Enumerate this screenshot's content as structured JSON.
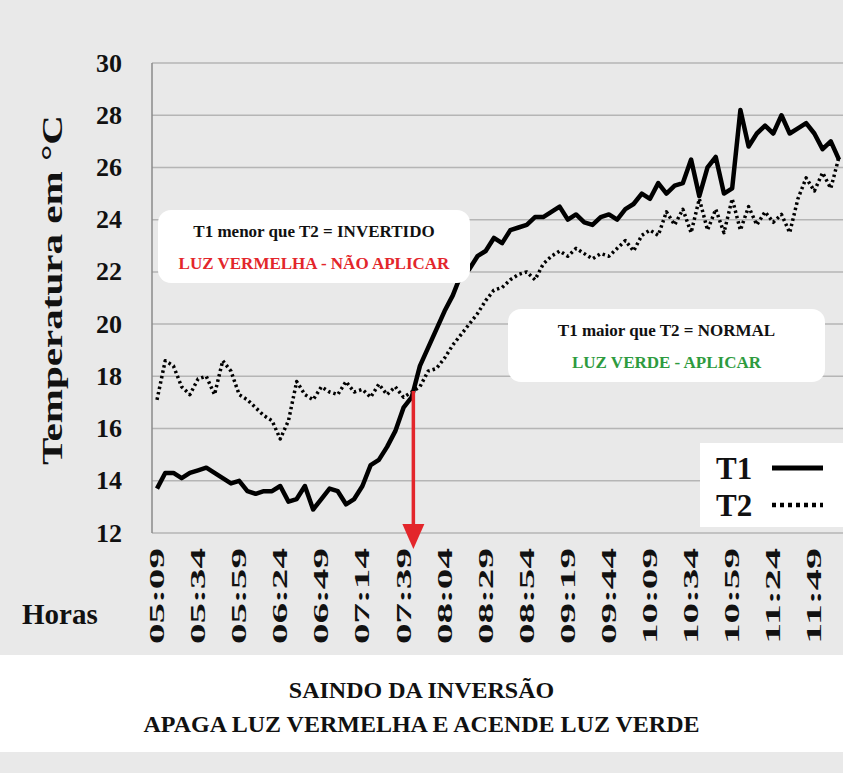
{
  "chart_data": {
    "type": "line",
    "x_label": "Horas",
    "y_label": "Temperatura em °C",
    "categories": [
      "05:09",
      null,
      null,
      null,
      null,
      "05:34",
      null,
      null,
      null,
      null,
      "05:59",
      null,
      null,
      null,
      null,
      "06:24",
      null,
      null,
      null,
      null,
      "06:49",
      null,
      null,
      null,
      null,
      "07:14",
      null,
      null,
      null,
      null,
      "07:39",
      null,
      null,
      null,
      null,
      "08:04",
      null,
      null,
      null,
      null,
      "08:29",
      null,
      null,
      null,
      null,
      "08:54",
      null,
      null,
      null,
      null,
      "09:19",
      null,
      null,
      null,
      null,
      "09:44",
      null,
      null,
      null,
      null,
      "10:09",
      null,
      null,
      null,
      null,
      "10:34",
      null,
      null,
      null,
      null,
      "10:59",
      null,
      null,
      null,
      null,
      "11:24",
      null,
      null,
      null,
      null,
      "11:49",
      null,
      null,
      null
    ],
    "series": [
      {
        "name": "T1",
        "color": "#000000",
        "line_style": "solid",
        "values": [
          13.7,
          14.3,
          14.3,
          14.1,
          14.3,
          14.4,
          14.5,
          14.3,
          14.1,
          13.9,
          14.0,
          13.6,
          13.5,
          13.6,
          13.6,
          13.8,
          13.2,
          13.3,
          13.8,
          12.9,
          13.3,
          13.7,
          13.6,
          13.1,
          13.3,
          13.8,
          14.6,
          14.8,
          15.3,
          15.9,
          16.8,
          17.2,
          18.4,
          19.1,
          19.8,
          20.5,
          21.1,
          21.9,
          22.1,
          22.6,
          22.8,
          23.3,
          23.1,
          23.6,
          23.7,
          23.8,
          24.1,
          24.1,
          24.3,
          24.5,
          24.0,
          24.2,
          23.9,
          23.8,
          24.1,
          24.2,
          24.0,
          24.4,
          24.6,
          25.0,
          24.8,
          25.4,
          25.0,
          25.3,
          25.4,
          26.3,
          24.9,
          26.0,
          26.4,
          25.0,
          25.2,
          28.2,
          26.8,
          27.3,
          27.6,
          27.3,
          28.0,
          27.3,
          27.5,
          27.7,
          27.3,
          26.7,
          27.0,
          26.3
        ]
      },
      {
        "name": "T2",
        "color": "#000000",
        "line_style": "dotted",
        "values": [
          17.1,
          18.6,
          18.4,
          17.6,
          17.3,
          17.9,
          18.0,
          17.3,
          18.6,
          18.2,
          17.3,
          17.1,
          16.8,
          16.5,
          16.3,
          15.6,
          16.3,
          17.8,
          17.3,
          17.1,
          17.6,
          17.4,
          17.3,
          17.8,
          17.4,
          17.5,
          17.2,
          17.7,
          17.3,
          17.6,
          17.2,
          17.4,
          17.6,
          18.2,
          18.3,
          18.7,
          19.2,
          19.6,
          20.0,
          20.4,
          20.9,
          21.3,
          21.4,
          21.7,
          21.9,
          22.0,
          21.7,
          22.3,
          22.6,
          22.8,
          22.6,
          22.9,
          22.7,
          22.5,
          22.7,
          22.6,
          22.9,
          23.2,
          22.8,
          23.4,
          23.6,
          23.4,
          24.3,
          23.8,
          24.4,
          23.5,
          24.8,
          23.6,
          24.4,
          23.5,
          24.8,
          23.6,
          24.5,
          23.8,
          24.3,
          23.9,
          24.2,
          23.5,
          24.8,
          25.6,
          25.1,
          25.8,
          25.2,
          26.4
        ]
      }
    ],
    "ylim": [
      12,
      30
    ],
    "yticks": [
      12,
      14,
      16,
      18,
      20,
      22,
      24,
      26,
      28,
      30
    ],
    "grid": true,
    "legend": "right",
    "annotations": [
      [
        "T1 menor que T2 = INVERTIDO",
        "LUZ VERMELHA - NÃO APLICAR"
      ],
      [
        "T1 maior que T2 = NORMAL",
        "LUZ VERDE - APLICAR"
      ]
    ],
    "caption": [
      "SAINDO DA INVERSÃO",
      "APAGA LUZ VERMELHA E ACENDE LUZ VERDE"
    ]
  }
}
